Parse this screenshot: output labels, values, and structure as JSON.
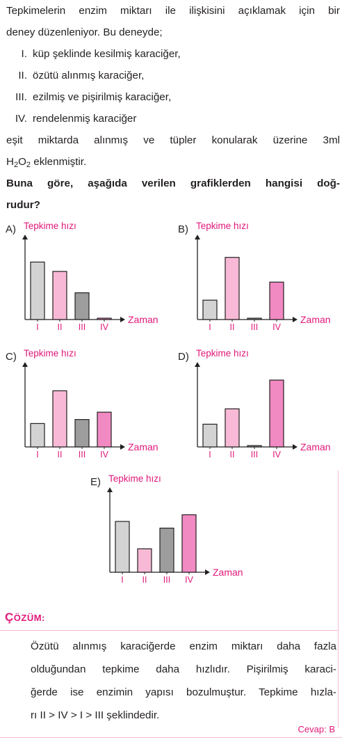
{
  "question": {
    "intro_line1": "Tepkimelerin enzim miktarı ile ilişkisini açıklamak için bir",
    "intro_line2": "deney düzenleniyor. Bu deneyde;",
    "items": [
      {
        "num": "I.",
        "text": "küp şeklinde kesilmiş karaciğer,"
      },
      {
        "num": "II.",
        "text": "özütü alınmış karaciğer,"
      },
      {
        "num": "III.",
        "text": "ezilmiş ve pişirilmiş karaciğer,"
      },
      {
        "num": "IV.",
        "text": "rendelenmiş karaciğer"
      }
    ],
    "body_line1": "eşit miktarda alınmış ve tüpler konularak üzerine 3ml",
    "formula_h": "H",
    "formula_2a": "2",
    "formula_o": "O",
    "formula_2b": "2",
    "body_line2_rest": " eklenmiştir.",
    "prompt_line1": "Buna göre, aşağıda verilen grafiklerden hangisi doğ-",
    "prompt_line2": "rudur?"
  },
  "chart_data": [
    {
      "type": "bar",
      "option": "A)",
      "ylabel": "Tepkime hızı",
      "xlabel": "Zaman",
      "categories": [
        "I",
        "II",
        "III",
        "IV"
      ],
      "values": [
        86,
        72,
        40,
        2
      ],
      "colors": [
        "#d3d3d3",
        "#f7b9d6",
        "#9d9d9d",
        "#f189c2"
      ],
      "ylim": [
        0,
        100
      ]
    },
    {
      "type": "bar",
      "option": "B)",
      "ylabel": "Tepkime hızı",
      "xlabel": "Zaman",
      "categories": [
        "I",
        "II",
        "III",
        "IV"
      ],
      "values": [
        29,
        93,
        2,
        56
      ],
      "colors": [
        "#d3d3d3",
        "#f7b9d6",
        "#9d9d9d",
        "#f189c2"
      ],
      "ylim": [
        0,
        100
      ]
    },
    {
      "type": "bar",
      "option": "C)",
      "ylabel": "Tepkime hızı",
      "xlabel": "Zaman",
      "categories": [
        "I",
        "II",
        "III",
        "IV"
      ],
      "values": [
        35,
        84,
        41,
        52
      ],
      "colors": [
        "#d3d3d3",
        "#f7b9d6",
        "#9d9d9d",
        "#f189c2"
      ],
      "ylim": [
        0,
        100
      ]
    },
    {
      "type": "bar",
      "option": "D)",
      "ylabel": "Tepkime hızı",
      "xlabel": "Zaman",
      "categories": [
        "I",
        "II",
        "III",
        "IV"
      ],
      "values": [
        34,
        57,
        2,
        100
      ],
      "colors": [
        "#d3d3d3",
        "#f7b9d6",
        "#9d9d9d",
        "#f189c2"
      ],
      "ylim": [
        0,
        100
      ]
    },
    {
      "type": "bar",
      "option": "E)",
      "ylabel": "Tepkime hızı",
      "xlabel": "Zaman",
      "categories": [
        "I",
        "II",
        "III",
        "IV"
      ],
      "values": [
        76,
        35,
        66,
        86
      ],
      "colors": [
        "#d3d3d3",
        "#f7b9d6",
        "#9d9d9d",
        "#f189c2"
      ],
      "ylim": [
        0,
        100
      ]
    }
  ],
  "solution": {
    "title_first": "Ç",
    "title_rest": "ÖZÜM:",
    "lines": [
      "Özütü alınmış karaciğerde enzim miktarı daha fazla",
      "olduğundan tepkime daha hızlıdır. Pişirilmiş karaci-",
      "ğerde ise enzimin yapısı bozulmuştur. Tepkime hızla-",
      "rı II > IV > I > III şeklindedir."
    ],
    "answer": "Cevap: B"
  }
}
